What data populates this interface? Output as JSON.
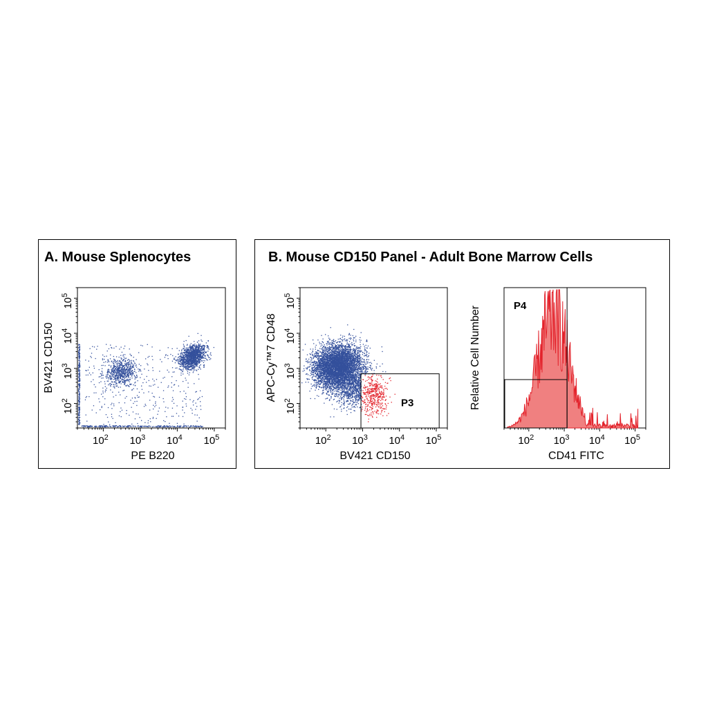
{
  "panels": {
    "a_title": "A. Mouse Splenocytes",
    "b_title": "B. Mouse CD150 Panel - Adult Bone Marrow Cells"
  },
  "colors": {
    "dots_primary": "#34509c",
    "dots_gated": "#e3222b",
    "histogram_fill": "#f08080",
    "histogram_line": "#e3222b"
  },
  "chart_data": [
    {
      "type": "scatter",
      "xlabel": "PE  B220",
      "ylabel": "BV421  CD150",
      "xscale": "log",
      "yscale": "log",
      "xticks": [
        "10^2",
        "10^3",
        "10^4",
        "10^5"
      ],
      "yticks": [
        "10^2",
        "10^3",
        "10^4",
        "10^5"
      ],
      "xlim": [
        20,
        200000
      ],
      "ylim": [
        20,
        200000
      ],
      "clusters": [
        {
          "center_x": 300,
          "center_y": 800,
          "approx_events": 650
        },
        {
          "center_x": 25000,
          "center_y": 2200,
          "approx_events": 1300
        }
      ]
    },
    {
      "type": "scatter",
      "xlabel": "BV421  CD150",
      "ylabel": "APC-Cy™7  CD48",
      "xscale": "log",
      "yscale": "log",
      "xticks": [
        "10^2",
        "10^3",
        "10^4",
        "10^5"
      ],
      "yticks": [
        "10^2",
        "10^3",
        "10^4",
        "10^5"
      ],
      "xlim": [
        20,
        200000
      ],
      "ylim": [
        20,
        200000
      ],
      "gates": [
        {
          "name": "P3",
          "x_range": [
            900,
            120000
          ],
          "y_range": [
            20,
            700
          ]
        }
      ],
      "clusters": [
        {
          "center_x": 200,
          "center_y": 1200,
          "approx_events": 5000,
          "gated": false
        },
        {
          "center_x": 2000,
          "center_y": 180,
          "approx_events": 450,
          "gated": true
        }
      ]
    },
    {
      "type": "histogram",
      "xlabel": "CD41  FITC",
      "ylabel": "Relative Cell Number",
      "xscale": "log",
      "xticks": [
        "10^2",
        "10^3",
        "10^4",
        "10^5"
      ],
      "xlim": [
        20,
        200000
      ],
      "gates": [
        {
          "name": "P4",
          "x_range": [
            20,
            1200
          ]
        }
      ],
      "peak_x": 500,
      "gate_divider_x": 1200,
      "outer_region_right_x": 200000
    }
  ]
}
